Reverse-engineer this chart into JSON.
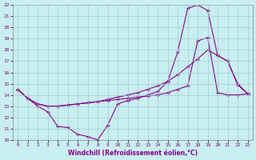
{
  "xlabel": "Windchill (Refroidissement éolien,°C)",
  "bg_color": "#c8eef0",
  "line_color": "#880088",
  "grid_color": "#b0d0d0",
  "xlim": [
    -0.5,
    23.5
  ],
  "ylim": [
    10,
    22
  ],
  "xticks": [
    0,
    1,
    2,
    3,
    4,
    5,
    6,
    7,
    8,
    9,
    10,
    11,
    12,
    13,
    14,
    15,
    16,
    17,
    18,
    19,
    20,
    21,
    22,
    23
  ],
  "yticks": [
    10,
    11,
    12,
    13,
    14,
    15,
    16,
    17,
    18,
    19,
    20,
    21,
    22
  ],
  "line1_x": [
    0,
    1,
    2,
    3,
    4,
    5,
    6,
    7,
    8,
    9,
    10,
    11,
    12,
    13,
    14,
    15,
    16,
    17,
    18,
    19,
    20,
    21,
    22,
    23
  ],
  "line1_y": [
    14.5,
    13.7,
    13.0,
    12.5,
    11.2,
    11.1,
    10.5,
    10.3,
    10.0,
    11.3,
    13.2,
    13.5,
    13.7,
    14.0,
    14.3,
    15.2,
    17.8,
    21.7,
    22.0,
    21.5,
    17.5,
    17.0,
    15.0,
    14.1
  ],
  "line2_x": [
    0,
    1,
    2,
    3,
    4,
    5,
    6,
    7,
    8,
    9,
    10,
    11,
    12,
    13,
    14,
    15,
    16,
    17,
    18,
    19,
    20,
    21,
    22,
    23
  ],
  "line2_y": [
    14.5,
    13.7,
    13.2,
    13.0,
    13.0,
    13.1,
    13.2,
    13.3,
    13.4,
    13.6,
    13.8,
    14.0,
    14.2,
    14.5,
    14.8,
    15.2,
    15.8,
    16.5,
    17.2,
    18.0,
    17.5,
    17.0,
    14.9,
    14.1
  ],
  "line3_x": [
    0,
    1,
    2,
    3,
    4,
    5,
    6,
    7,
    8,
    9,
    10,
    11,
    12,
    13,
    14,
    15,
    16,
    17,
    18,
    19,
    20,
    21,
    22,
    23
  ],
  "line3_y": [
    14.5,
    13.7,
    13.2,
    13.0,
    13.0,
    13.1,
    13.2,
    13.3,
    13.4,
    13.5,
    13.6,
    13.7,
    13.8,
    13.9,
    14.0,
    14.2,
    14.5,
    14.8,
    18.8,
    19.1,
    14.2,
    14.0,
    14.0,
    14.1
  ]
}
